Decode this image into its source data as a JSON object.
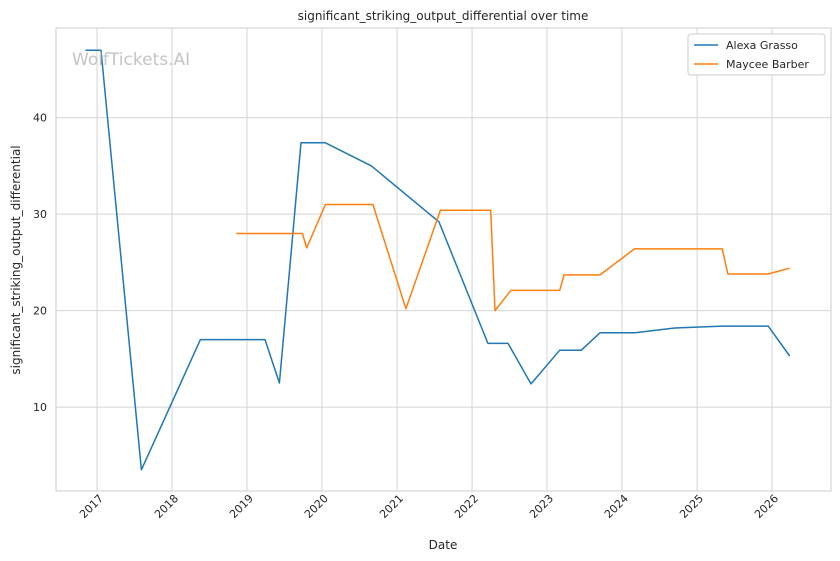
{
  "chart_data": {
    "type": "line",
    "title": "significant_striking_output_differential over time",
    "xlabel": "Date",
    "ylabel": "significant_striking_output_differential",
    "x_ticks": [
      "2017",
      "2018",
      "2019",
      "2020",
      "2021",
      "2022",
      "2023",
      "2024",
      "2025",
      "2026"
    ],
    "y_ticks": [
      10,
      20,
      30,
      40
    ],
    "xlim": [
      "2016-06-15",
      "2026-10-15"
    ],
    "ylim": [
      1.3,
      49.3
    ],
    "grid": true,
    "legend_position": "top-right",
    "watermark": "WolfTickets.AI",
    "series": [
      {
        "name": "Alexa Grasso",
        "color": "#1f77b4",
        "points": [
          [
            "2016-11-05",
            47.0
          ],
          [
            "2017-01-20",
            47.0
          ],
          [
            "2017-08-05",
            3.5
          ],
          [
            "2018-05-19",
            17.0
          ],
          [
            "2019-03-30",
            17.0
          ],
          [
            "2019-06-08",
            12.5
          ],
          [
            "2019-09-21",
            37.4
          ],
          [
            "2020-01-18",
            37.4
          ],
          [
            "2020-08-29",
            35.0
          ],
          [
            "2021-07-24",
            29.2
          ],
          [
            "2022-03-19",
            16.6
          ],
          [
            "2022-06-25",
            16.6
          ],
          [
            "2022-10-15",
            12.4
          ],
          [
            "2023-03-04",
            15.9
          ],
          [
            "2023-06-17",
            15.9
          ],
          [
            "2023-09-16",
            17.7
          ],
          [
            "2024-03-02",
            17.7
          ],
          [
            "2024-09-14",
            18.2
          ],
          [
            "2025-05-03",
            18.4
          ],
          [
            "2025-12-13",
            18.4
          ],
          [
            "2026-03-28",
            15.3
          ]
        ]
      },
      {
        "name": "Maycee Barber",
        "color": "#ff7f0e",
        "points": [
          [
            "2018-11-10",
            28.0
          ],
          [
            "2019-09-28",
            28.0
          ],
          [
            "2019-10-19",
            26.5
          ],
          [
            "2020-01-18",
            31.0
          ],
          [
            "2020-09-05",
            31.0
          ],
          [
            "2021-02-13",
            20.2
          ],
          [
            "2021-07-31",
            30.4
          ],
          [
            "2022-04-02",
            30.4
          ],
          [
            "2022-04-23",
            20.0
          ],
          [
            "2022-07-09",
            22.1
          ],
          [
            "2023-03-04",
            22.1
          ],
          [
            "2023-03-25",
            23.7
          ],
          [
            "2023-09-16",
            23.7
          ],
          [
            "2024-03-02",
            26.4
          ],
          [
            "2025-05-03",
            26.4
          ],
          [
            "2025-05-31",
            23.8
          ],
          [
            "2025-12-13",
            23.8
          ],
          [
            "2026-03-28",
            24.4
          ]
        ]
      }
    ]
  }
}
